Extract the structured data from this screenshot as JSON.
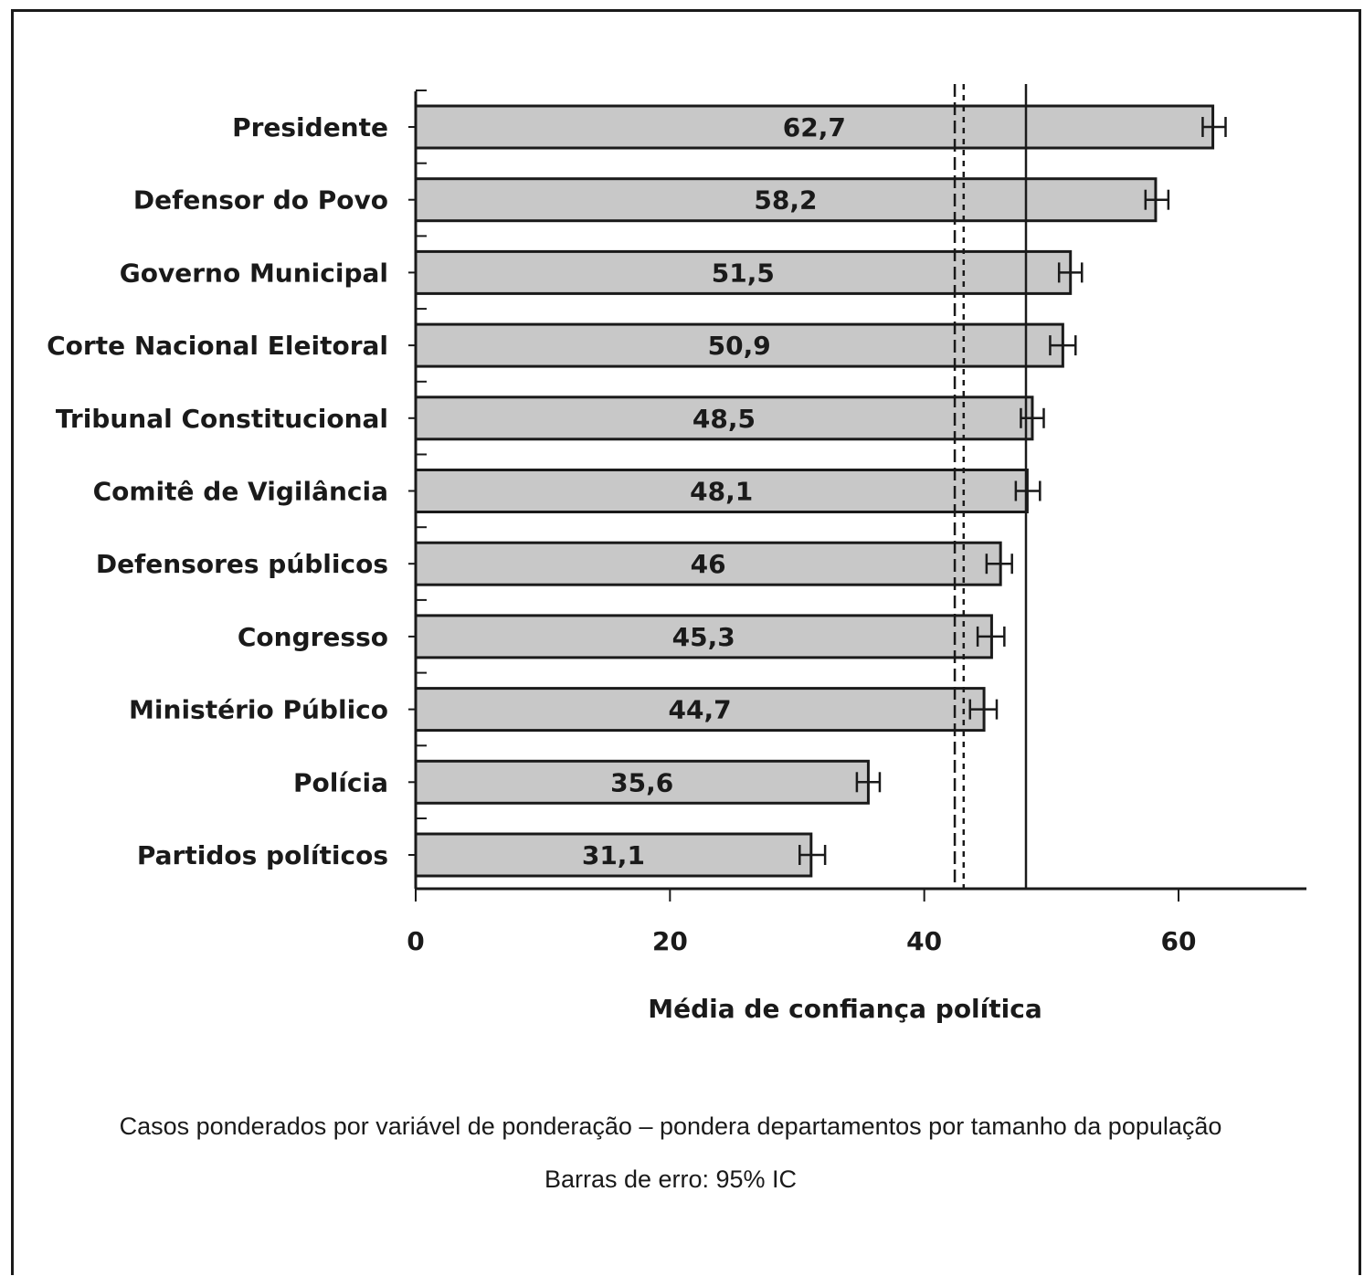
{
  "chart_data": {
    "type": "bar",
    "orientation": "horizontal",
    "categories": [
      "Presidente",
      "Defensor do Povo",
      "Governo Municipal",
      "Corte Nacional Eleitoral",
      "Tribunal Constitucional",
      "Comitê de Vigilância",
      "Defensores públicos",
      "Congresso",
      "Ministério Público",
      "Polícia",
      "Partidos políticos"
    ],
    "values": [
      62.7,
      58.2,
      51.5,
      50.9,
      48.5,
      48.1,
      46,
      45.3,
      44.7,
      35.6,
      31.1
    ],
    "value_labels": [
      "62,7",
      "58,2",
      "51,5",
      "50,9",
      "48,5",
      "48,1",
      "46",
      "45,3",
      "44,7",
      "35,6",
      "31,1"
    ],
    "error_bars": [
      [
        61.9,
        63.7
      ],
      [
        57.4,
        59.2
      ],
      [
        50.6,
        52.4
      ],
      [
        49.9,
        51.9
      ],
      [
        47.6,
        49.4
      ],
      [
        47.2,
        49.1
      ],
      [
        44.9,
        46.9
      ],
      [
        44.2,
        46.3
      ],
      [
        43.6,
        45.7
      ],
      [
        34.7,
        36.5
      ],
      [
        30.2,
        32.2
      ]
    ],
    "reference_lines": [
      {
        "value": 42.4,
        "style": "dashed"
      },
      {
        "value": 43.1,
        "style": "dotted"
      },
      {
        "value": 48.0,
        "style": "solid"
      }
    ],
    "xlabel": "Média de confiança política",
    "ylabel": "",
    "xlim": [
      0,
      70
    ],
    "xticks": [
      "0",
      "20",
      "40",
      "60"
    ],
    "xtick_values": [
      0,
      20,
      40,
      60
    ],
    "grid": false,
    "bar_color": "#c8c8c8",
    "bar_edge_color": "#1a1a1a"
  },
  "notes": {
    "weighting": "Casos ponderados por variável de ponderação – pondera departamentos por tamanho da população",
    "error_bars": "Barras de erro: 95% IC"
  }
}
